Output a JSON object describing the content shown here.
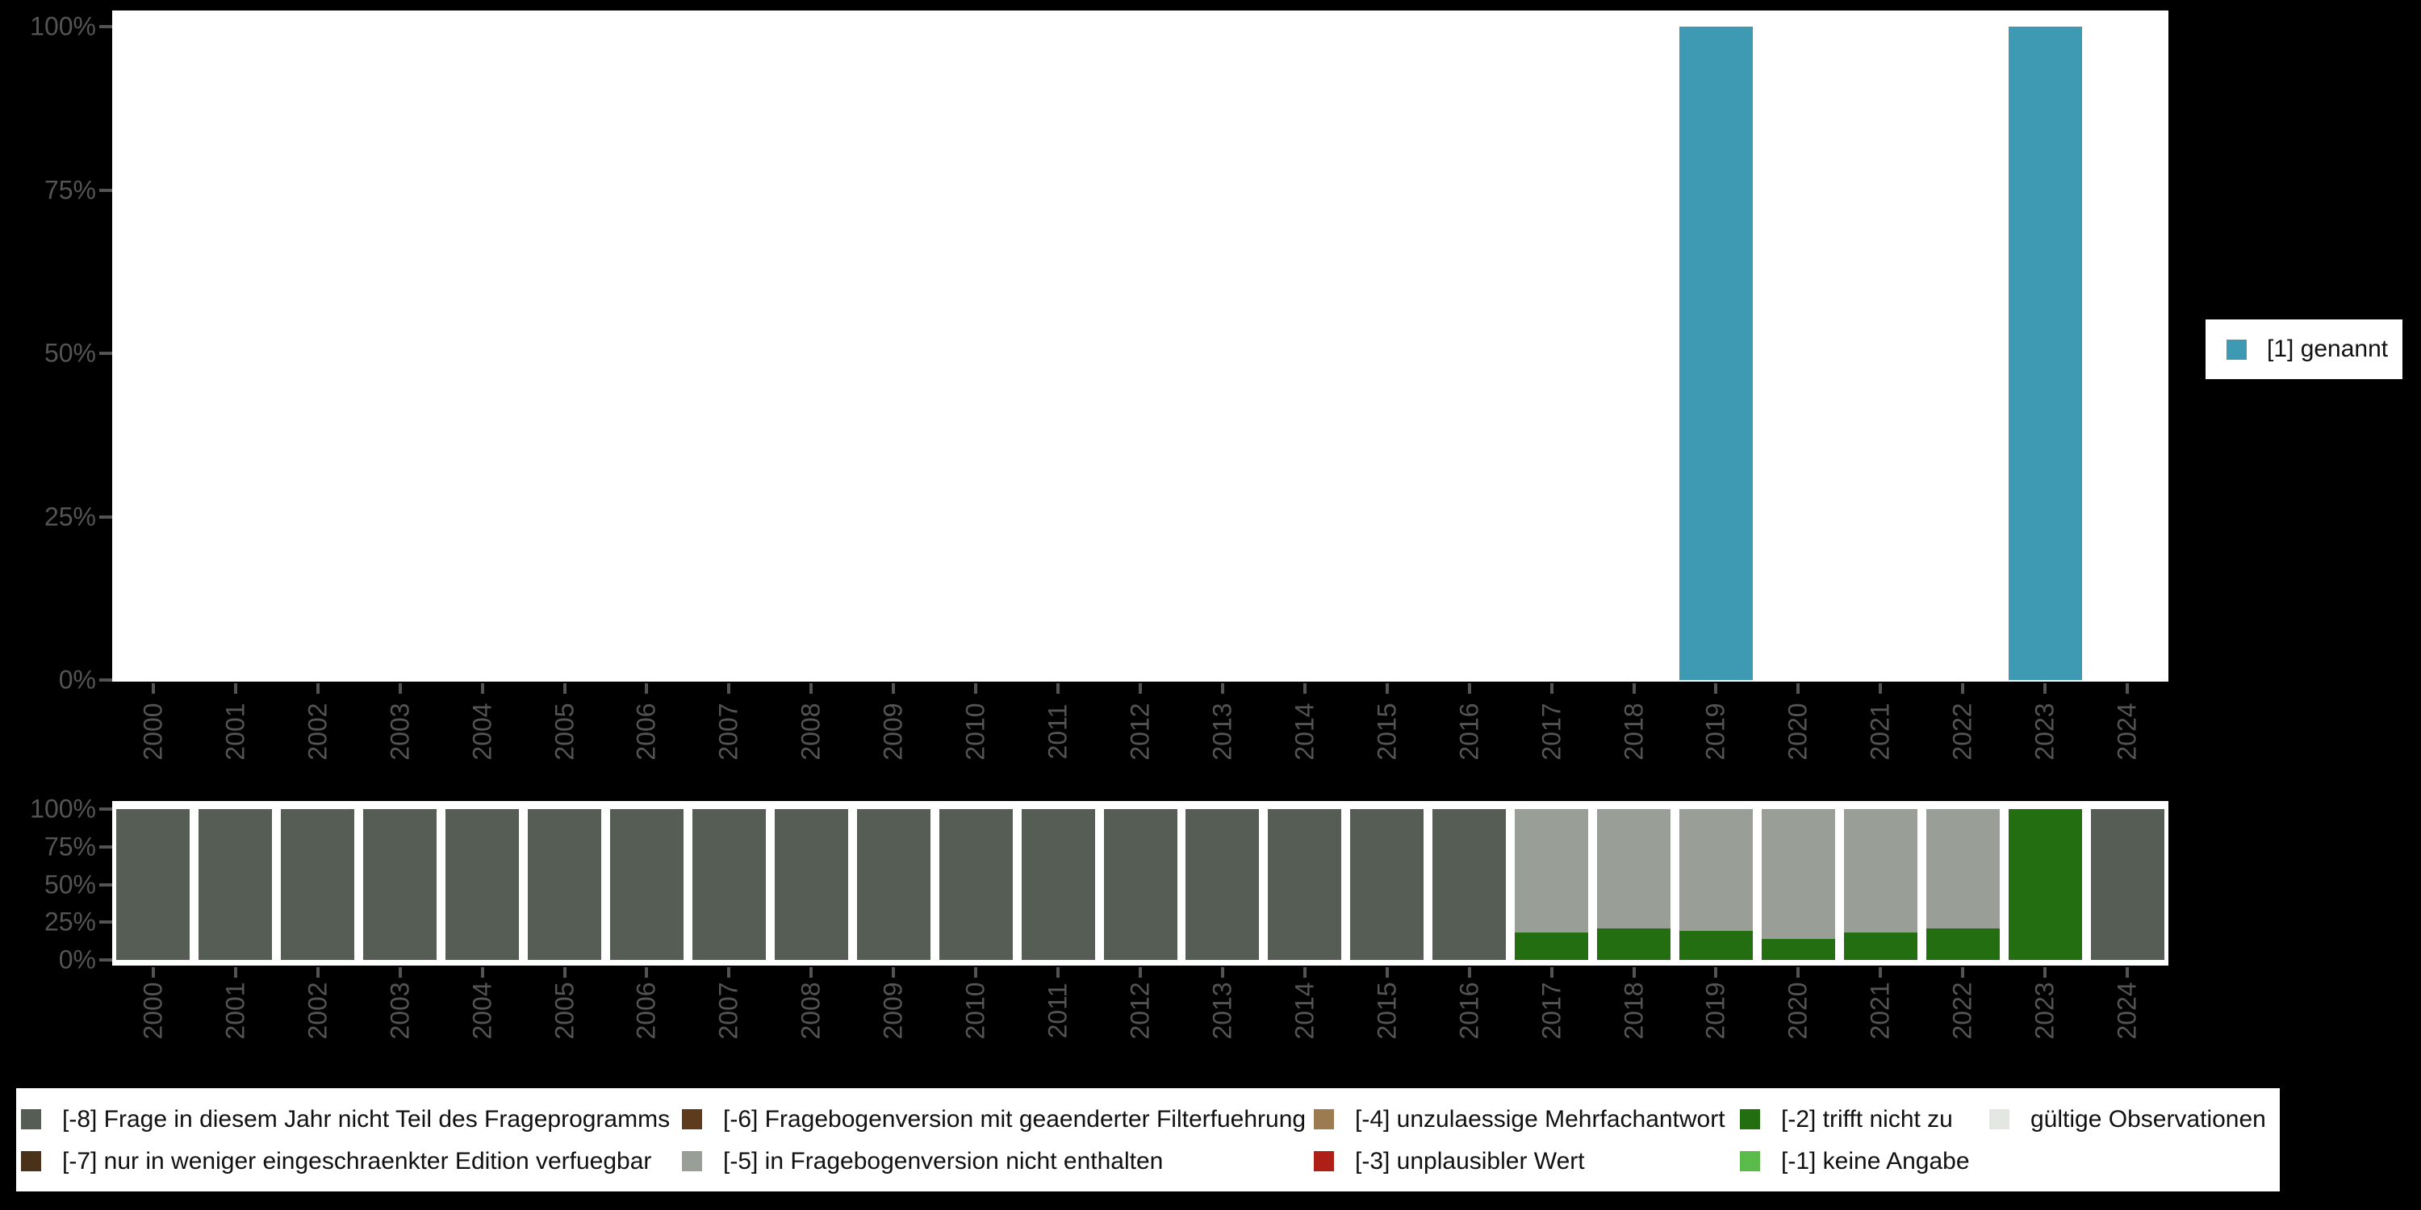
{
  "colors": {
    "background": "#000000",
    "plot_bg": "#ffffff",
    "axis_text": "#545454",
    "tick": "#545454",
    "legend_text": "#111111",
    "cat1": "#3d9ab2",
    "m8": "#565d55",
    "m7": "#4a3119",
    "m6": "#5d3b1c",
    "m5": "#999e96",
    "m4": "#9c7b50",
    "m3": "#ae2015",
    "m2": "#226e11",
    "m1": "#5abb4a",
    "valid": "#e4e7e1"
  },
  "years": [
    "2000",
    "2001",
    "2002",
    "2003",
    "2004",
    "2005",
    "2006",
    "2007",
    "2008",
    "2009",
    "2010",
    "2011",
    "2012",
    "2013",
    "2014",
    "2015",
    "2016",
    "2017",
    "2018",
    "2019",
    "2020",
    "2021",
    "2022",
    "2023",
    "2024"
  ],
  "y_tick_labels_top_to_bottom": [
    "100%",
    "75%",
    "50%",
    "25%",
    "0%"
  ],
  "top_legend": {
    "label": "[1] genannt",
    "color_key": "cat1"
  },
  "missing_legend": {
    "items": [
      {
        "label": "[-8] Frage in diesem Jahr nicht Teil des Frageprogramms",
        "color_key": "m8",
        "col": 0,
        "row": 0
      },
      {
        "label": "[-7] nur in weniger eingeschraenkter Edition verfuegbar",
        "color_key": "m7",
        "col": 0,
        "row": 1
      },
      {
        "label": "[-6] Fragebogenversion mit geaenderter Filterfuehrung",
        "color_key": "m6",
        "col": 1,
        "row": 0
      },
      {
        "label": "[-5] in Fragebogenversion nicht enthalten",
        "color_key": "m5",
        "col": 1,
        "row": 1
      },
      {
        "label": "[-4] unzulaessige Mehrfachantwort",
        "color_key": "m4",
        "col": 2,
        "row": 0
      },
      {
        "label": "[-3] unplausibler Wert",
        "color_key": "m3",
        "col": 2,
        "row": 1
      },
      {
        "label": "[-2] trifft nicht zu",
        "color_key": "m2",
        "col": 3,
        "row": 0
      },
      {
        "label": "[-1] keine Angabe",
        "color_key": "m1",
        "col": 3,
        "row": 1
      },
      {
        "label": "gültige Observationen",
        "color_key": "valid",
        "col": 4,
        "row": 0
      }
    ]
  },
  "chart_data": [
    {
      "type": "bar",
      "title": "",
      "xlabel": "",
      "ylabel": "",
      "ylim": [
        0,
        100
      ],
      "y_ticks": [
        "0%",
        "25%",
        "50%",
        "75%",
        "100%"
      ],
      "grid": false,
      "legend_position": "right-middle",
      "categories": [
        "2000",
        "2001",
        "2002",
        "2003",
        "2004",
        "2005",
        "2006",
        "2007",
        "2008",
        "2009",
        "2010",
        "2011",
        "2012",
        "2013",
        "2014",
        "2015",
        "2016",
        "2017",
        "2018",
        "2019",
        "2020",
        "2021",
        "2022",
        "2023",
        "2024"
      ],
      "series": [
        {
          "name": "[1] genannt",
          "color_key": "cat1",
          "values": [
            null,
            null,
            null,
            null,
            null,
            null,
            null,
            null,
            null,
            null,
            null,
            null,
            null,
            null,
            null,
            null,
            null,
            null,
            null,
            100,
            null,
            null,
            null,
            100,
            null
          ]
        }
      ]
    },
    {
      "type": "stacked_bar_percent",
      "title": "",
      "xlabel": "",
      "ylabel": "",
      "ylim": [
        0,
        100
      ],
      "y_ticks": [
        "0%",
        "25%",
        "50%",
        "75%",
        "100%"
      ],
      "grid": false,
      "legend_position": "bottom",
      "stack_order_bottom_to_top": [
        "m2",
        "m5",
        "m8"
      ],
      "categories": [
        "2000",
        "2001",
        "2002",
        "2003",
        "2004",
        "2005",
        "2006",
        "2007",
        "2008",
        "2009",
        "2010",
        "2011",
        "2012",
        "2013",
        "2014",
        "2015",
        "2016",
        "2017",
        "2018",
        "2019",
        "2020",
        "2021",
        "2022",
        "2023",
        "2024"
      ],
      "series": [
        {
          "name": "[-8] Frage in diesem Jahr nicht Teil des Frageprogramms",
          "color_key": "m8",
          "values": [
            100,
            100,
            100,
            100,
            100,
            100,
            100,
            100,
            100,
            100,
            100,
            100,
            100,
            100,
            100,
            100,
            100,
            0,
            0,
            0,
            0,
            0,
            0,
            0,
            100
          ]
        },
        {
          "name": "[-5] in Fragebogenversion nicht enthalten",
          "color_key": "m5",
          "values": [
            0,
            0,
            0,
            0,
            0,
            0,
            0,
            0,
            0,
            0,
            0,
            0,
            0,
            0,
            0,
            0,
            0,
            82,
            79,
            81,
            86,
            82,
            79,
            0,
            0
          ]
        },
        {
          "name": "[-2] trifft nicht zu",
          "color_key": "m2",
          "values": [
            0,
            0,
            0,
            0,
            0,
            0,
            0,
            0,
            0,
            0,
            0,
            0,
            0,
            0,
            0,
            0,
            0,
            18,
            21,
            19,
            14,
            18,
            21,
            100,
            0
          ]
        }
      ]
    }
  ]
}
